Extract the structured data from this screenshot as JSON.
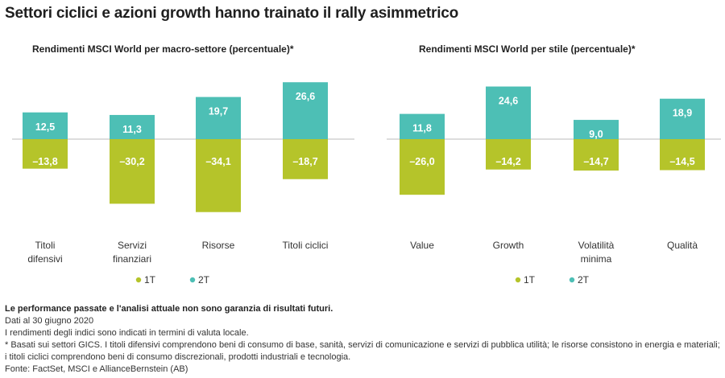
{
  "title": "Settori ciclici e azioni growth hanno trainato il rally asimmetrico",
  "colors": {
    "q1": "#b5c42a",
    "q2": "#4dbfb5",
    "zero_line": "#bbbbbb"
  },
  "legend": {
    "q1": "1T",
    "q2": "2T"
  },
  "chart_data": [
    {
      "type": "bar",
      "title": "Rendimenti MSCI World per macro-settore (percentuale)*",
      "categories": [
        [
          "Titoli",
          "difensivi"
        ],
        [
          "Servizi",
          "finanziari"
        ],
        [
          "Risorse"
        ],
        [
          "Titoli ciclici"
        ]
      ],
      "series": [
        {
          "name": "1T",
          "values": [
            -13.8,
            -30.2,
            -34.1,
            -18.7
          ],
          "labels": [
            "–13,8",
            "–30,2",
            "–34,1",
            "–18,7"
          ]
        },
        {
          "name": "2T",
          "values": [
            12.5,
            11.3,
            19.7,
            26.6
          ],
          "labels": [
            "12,5",
            "11,3",
            "19,7",
            "26,6"
          ]
        }
      ]
    },
    {
      "type": "bar",
      "title": "Rendimenti MSCI World per stile (percentuale)*",
      "categories": [
        [
          "Value"
        ],
        [
          "Growth"
        ],
        [
          "Volatilità",
          "minima"
        ],
        [
          "Qualità"
        ]
      ],
      "series": [
        {
          "name": "1T",
          "values": [
            -26.0,
            -14.2,
            -14.7,
            -14.5
          ],
          "labels": [
            "–26,0",
            "–14,2",
            "–14,7",
            "–14,5"
          ]
        },
        {
          "name": "2T",
          "values": [
            11.8,
            24.6,
            9.0,
            18.9
          ],
          "labels": [
            "11,8",
            "24,6",
            "9,0",
            "18,9"
          ]
        }
      ]
    }
  ],
  "footer": {
    "disclaimer": "Le performance passate e l'analisi attuale non sono garanzia di risultati futuri.",
    "date": "Dati al 30 giugno 2020",
    "note1": "I rendimenti degli indici sono indicati in termini di valuta locale.",
    "note2": "* Basati sui settori GICS. I titoli difensivi comprendono beni di consumo di base, sanità, servizi di comunicazione e servizi di pubblica utilità; le risorse consistono in energia e materiali; i titoli ciclici comprendono beni di consumo discrezionali, prodotti industriali e tecnologia.",
    "source": "Fonte: FactSet, MSCI e AllianceBernstein (AB)"
  }
}
